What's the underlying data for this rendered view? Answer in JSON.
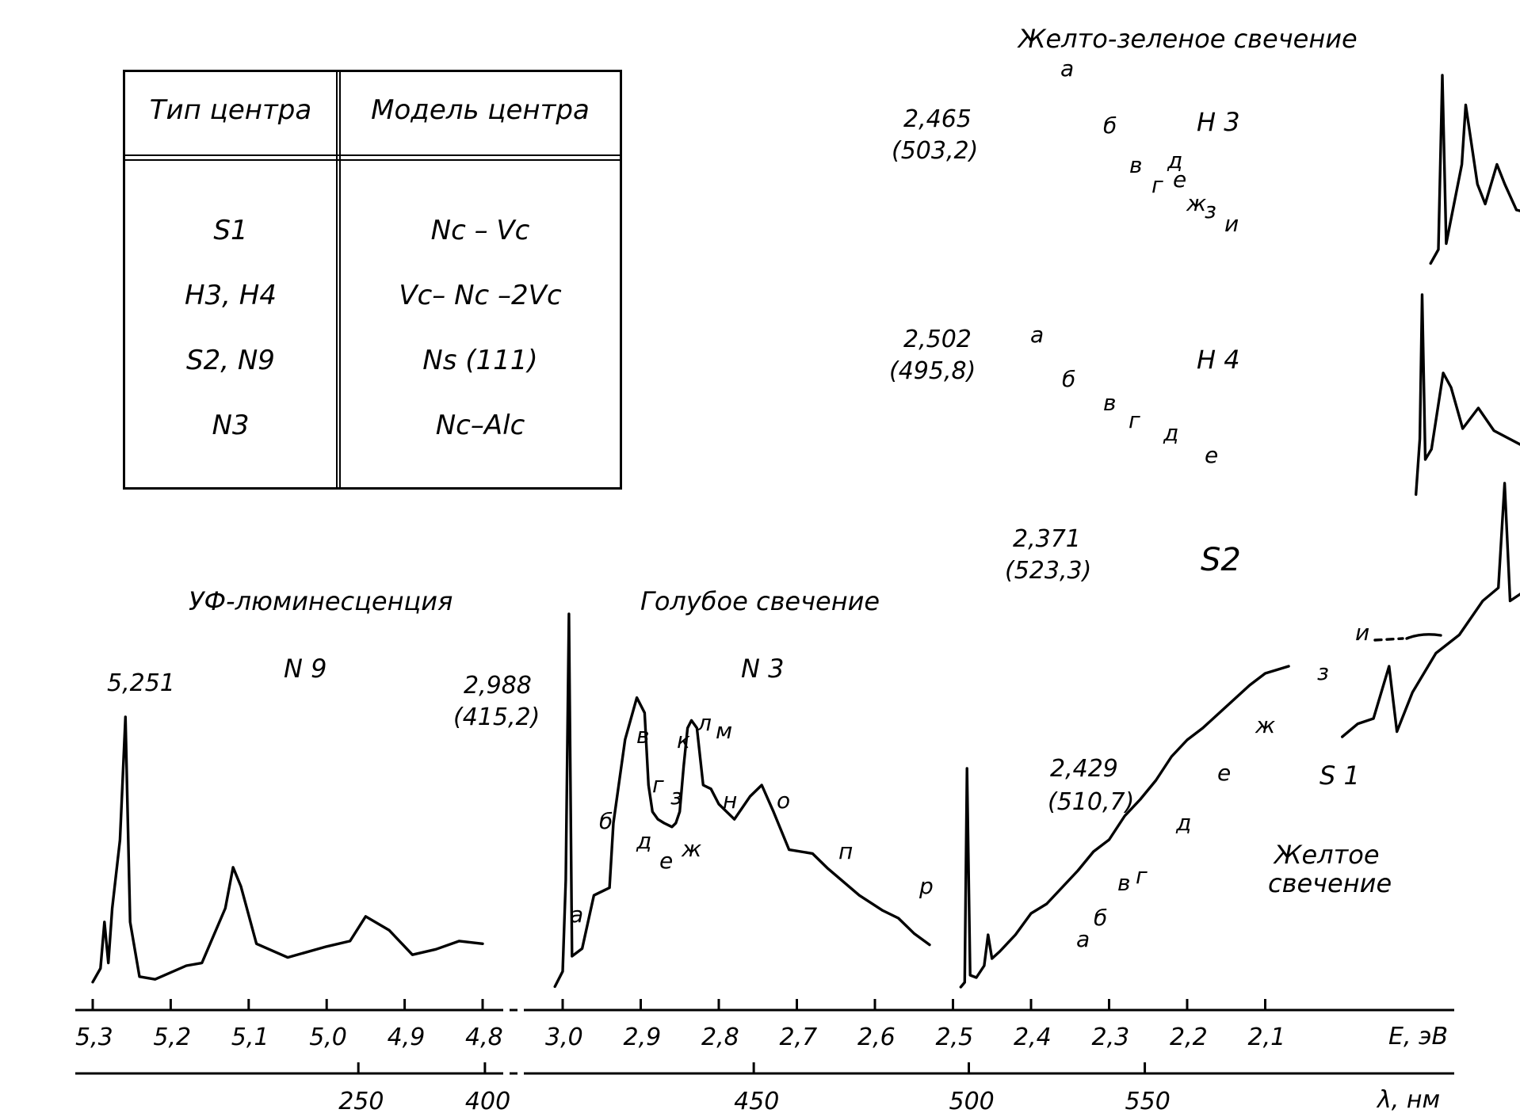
{
  "table": {
    "headers": [
      "Тип центра",
      "Модель центра"
    ],
    "rows": [
      [
        "S1",
        "Nc – Vc"
      ],
      [
        "H3, H4",
        "Vc– Nc –2Vc"
      ],
      [
        "S2, N9",
        "Ns (111)"
      ],
      [
        "N3",
        "Nc–Alc"
      ]
    ]
  },
  "chart_data": {
    "type": "line",
    "x_axis_energy": {
      "label": "E, эВ",
      "ticks_left": [
        "5,3",
        "5,2",
        "5,1",
        "5,0",
        "4,9",
        "4,8"
      ],
      "ticks_right": [
        "3,0",
        "2,9",
        "2,8",
        "2,7",
        "2,6",
        "2,5",
        "2,4",
        "2,3",
        "2,2",
        "2,1"
      ],
      "range_left": [
        5.3,
        4.8
      ],
      "range_right": [
        3.0,
        2.1
      ]
    },
    "x_axis_wavelength": {
      "label": "λ, нм",
      "ticks": [
        "250",
        "400",
        "450",
        "500",
        "550"
      ]
    },
    "spectra": [
      {
        "id": "N9",
        "group_title": "УФ-люминесценция",
        "name": "N 9",
        "zpl_label": "5,251",
        "zpl_energy": 5.251,
        "points": [
          [
            5.3,
            0.03
          ],
          [
            5.29,
            0.08
          ],
          [
            5.285,
            0.25
          ],
          [
            5.28,
            0.1
          ],
          [
            5.275,
            0.3
          ],
          [
            5.265,
            0.55
          ],
          [
            5.258,
            1.0
          ],
          [
            5.252,
            0.25
          ],
          [
            5.24,
            0.05
          ],
          [
            5.22,
            0.04
          ],
          [
            5.18,
            0.09
          ],
          [
            5.16,
            0.1
          ],
          [
            5.13,
            0.3
          ],
          [
            5.12,
            0.45
          ],
          [
            5.11,
            0.38
          ],
          [
            5.09,
            0.17
          ],
          [
            5.05,
            0.12
          ],
          [
            5.0,
            0.16
          ],
          [
            4.97,
            0.18
          ],
          [
            4.95,
            0.27
          ],
          [
            4.92,
            0.22
          ],
          [
            4.89,
            0.13
          ],
          [
            4.86,
            0.15
          ],
          [
            4.83,
            0.18
          ],
          [
            4.8,
            0.17
          ]
        ]
      },
      {
        "id": "N3",
        "group_title": "Голубое свечение",
        "name": "N 3",
        "zpl_label": "2,988",
        "zpl_wavelength_label": "(415,2)",
        "zpl_energy": 2.988,
        "line_letters": [
          "а",
          "б",
          "в",
          "г",
          "д",
          "е",
          "ж",
          "з",
          "к",
          "л",
          "м",
          "н",
          "о",
          "п",
          "р"
        ],
        "points": [
          [
            3.01,
            0.02
          ],
          [
            3.0,
            0.06
          ],
          [
            2.996,
            0.3
          ],
          [
            2.992,
            1.0
          ],
          [
            2.988,
            0.1
          ],
          [
            2.975,
            0.12
          ],
          [
            2.96,
            0.26
          ],
          [
            2.94,
            0.28
          ],
          [
            2.935,
            0.45
          ],
          [
            2.92,
            0.67
          ],
          [
            2.905,
            0.78
          ],
          [
            2.895,
            0.74
          ],
          [
            2.89,
            0.55
          ],
          [
            2.885,
            0.48
          ],
          [
            2.878,
            0.46
          ],
          [
            2.87,
            0.45
          ],
          [
            2.86,
            0.44
          ],
          [
            2.855,
            0.45
          ],
          [
            2.85,
            0.48
          ],
          [
            2.845,
            0.6
          ],
          [
            2.84,
            0.7
          ],
          [
            2.835,
            0.72
          ],
          [
            2.828,
            0.7
          ],
          [
            2.82,
            0.55
          ],
          [
            2.81,
            0.54
          ],
          [
            2.8,
            0.5
          ],
          [
            2.78,
            0.46
          ],
          [
            2.76,
            0.52
          ],
          [
            2.745,
            0.55
          ],
          [
            2.73,
            0.48
          ],
          [
            2.71,
            0.38
          ],
          [
            2.68,
            0.37
          ],
          [
            2.66,
            0.33
          ],
          [
            2.62,
            0.26
          ],
          [
            2.59,
            0.22
          ],
          [
            2.57,
            0.2
          ],
          [
            2.55,
            0.16
          ],
          [
            2.53,
            0.13
          ]
        ]
      },
      {
        "id": "H3",
        "group_title": "Желто-зеленое свечение",
        "name": "Н 3",
        "zpl_label": "2,465",
        "zpl_wavelength_label": "(503,2)",
        "zpl_energy": 2.465,
        "line_letters": [
          "а",
          "б",
          "в",
          "г",
          "д",
          "е",
          "ж",
          "з",
          "и"
        ],
        "points": [
          [
            2.48,
            0.05
          ],
          [
            2.47,
            0.12
          ],
          [
            2.465,
            1.0
          ],
          [
            2.46,
            0.15
          ],
          [
            2.455,
            0.25
          ],
          [
            2.44,
            0.55
          ],
          [
            2.435,
            0.85
          ],
          [
            2.42,
            0.45
          ],
          [
            2.41,
            0.35
          ],
          [
            2.395,
            0.55
          ],
          [
            2.385,
            0.45
          ],
          [
            2.37,
            0.32
          ],
          [
            2.35,
            0.3
          ],
          [
            2.33,
            0.26
          ],
          [
            2.31,
            0.22
          ],
          [
            2.28,
            0.18
          ],
          [
            2.25,
            0.15
          ],
          [
            2.2,
            0.09
          ],
          [
            2.16,
            0.06
          ],
          [
            2.14,
            0.05
          ]
        ]
      },
      {
        "id": "H4",
        "group_title": "",
        "name": "Н 4",
        "zpl_label": "2,502",
        "zpl_wavelength_label": "(495,8)",
        "zpl_energy": 2.502,
        "line_letters": [
          "а",
          "б",
          "в",
          "г",
          "д",
          "е"
        ],
        "points": [
          [
            2.51,
            0.03
          ],
          [
            2.505,
            0.3
          ],
          [
            2.502,
            1.0
          ],
          [
            2.498,
            0.2
          ],
          [
            2.49,
            0.25
          ],
          [
            2.475,
            0.62
          ],
          [
            2.465,
            0.55
          ],
          [
            2.45,
            0.35
          ],
          [
            2.43,
            0.45
          ],
          [
            2.41,
            0.34
          ],
          [
            2.39,
            0.3
          ],
          [
            2.36,
            0.24
          ],
          [
            2.33,
            0.2
          ],
          [
            2.3,
            0.15
          ],
          [
            2.27,
            0.1
          ],
          [
            2.25,
            0.06
          ],
          [
            2.23,
            0.04
          ]
        ]
      },
      {
        "id": "S2",
        "group_title": "",
        "name": "S2",
        "zpl_label": "2,371",
        "zpl_wavelength_label": "(523,3)",
        "zpl_energy": 2.371,
        "points": [
          [
            2.58,
            0.03
          ],
          [
            2.56,
            0.08
          ],
          [
            2.54,
            0.1
          ],
          [
            2.52,
            0.3
          ],
          [
            2.51,
            0.05
          ],
          [
            2.49,
            0.2
          ],
          [
            2.46,
            0.35
          ],
          [
            2.43,
            0.42
          ],
          [
            2.4,
            0.55
          ],
          [
            2.38,
            0.6
          ],
          [
            2.372,
            1.0
          ],
          [
            2.365,
            0.55
          ],
          [
            2.35,
            0.58
          ],
          [
            2.32,
            0.6
          ],
          [
            2.3,
            0.64
          ],
          [
            2.27,
            0.6
          ],
          [
            2.24,
            0.5
          ],
          [
            2.21,
            0.38
          ],
          [
            2.19,
            0.3
          ]
        ]
      },
      {
        "id": "S1",
        "group_title": "Желтое свечение",
        "name": "S 1",
        "zpl_label": "2,429",
        "zpl_wavelength_label": "(510,7)",
        "zpl_energy": 2.429,
        "line_letters": [
          "а",
          "б",
          "в",
          "г",
          "д",
          "е",
          "ж",
          "з",
          "и"
        ],
        "points": [
          [
            2.49,
            0.03
          ],
          [
            2.485,
            0.05
          ],
          [
            2.482,
            0.95
          ],
          [
            2.478,
            0.08
          ],
          [
            2.47,
            0.07
          ],
          [
            2.46,
            0.12
          ],
          [
            2.455,
            0.25
          ],
          [
            2.45,
            0.15
          ],
          [
            2.44,
            0.18
          ],
          [
            2.42,
            0.25
          ],
          [
            2.4,
            0.34
          ],
          [
            2.38,
            0.38
          ],
          [
            2.36,
            0.45
          ],
          [
            2.34,
            0.52
          ],
          [
            2.32,
            0.6
          ],
          [
            2.3,
            0.65
          ],
          [
            2.28,
            0.75
          ],
          [
            2.26,
            0.82
          ],
          [
            2.24,
            0.9
          ],
          [
            2.22,
            1.0
          ],
          [
            2.2,
            1.07
          ],
          [
            2.18,
            1.12
          ],
          [
            2.16,
            1.18
          ],
          [
            2.14,
            1.24
          ],
          [
            2.12,
            1.3
          ],
          [
            2.1,
            1.35
          ],
          [
            2.07,
            1.38
          ]
        ]
      }
    ]
  }
}
